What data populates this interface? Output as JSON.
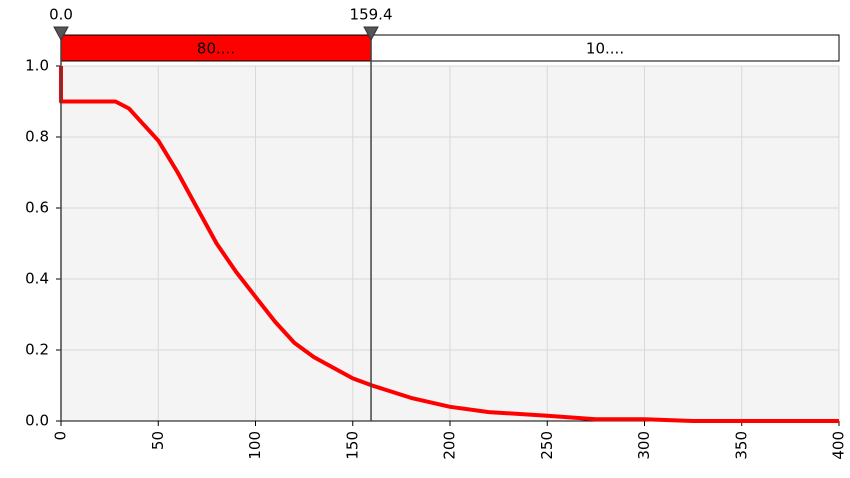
{
  "chart_data": {
    "type": "line",
    "x": [
      0,
      0,
      28,
      35,
      40,
      50,
      60,
      70,
      80,
      90,
      100,
      110,
      120,
      130,
      140,
      150,
      160,
      180,
      200,
      220,
      250,
      275,
      300,
      325,
      400
    ],
    "values": [
      1.0,
      0.9,
      0.9,
      0.88,
      0.85,
      0.79,
      0.7,
      0.6,
      0.5,
      0.42,
      0.35,
      0.28,
      0.22,
      0.18,
      0.15,
      0.12,
      0.1,
      0.065,
      0.04,
      0.025,
      0.015,
      0.005,
      0.005,
      0.0,
      0.0
    ],
    "color": "#ff0000",
    "xlim": [
      0,
      400
    ],
    "ylim": [
      0,
      1
    ],
    "xticks": [
      0,
      50,
      100,
      150,
      200,
      250,
      300,
      350,
      400
    ],
    "yticks": [
      {
        "value": 0,
        "label": "0.0"
      },
      {
        "value": 0.2,
        "label": "0.2"
      },
      {
        "value": 0.4,
        "label": "0.4"
      },
      {
        "value": 0.6,
        "label": "0.6"
      },
      {
        "value": 0.8,
        "label": "0.8"
      },
      {
        "value": 1,
        "label": "1.0"
      }
    ],
    "grid": true,
    "range_bar": {
      "markers": [
        {
          "value": 0,
          "label": "0.0"
        },
        {
          "value": 159.4,
          "label": "159.4"
        }
      ],
      "segments": [
        {
          "label": "80....",
          "color": "#ff0000"
        },
        {
          "label": "10....",
          "color": "#ffffff"
        }
      ]
    }
  }
}
